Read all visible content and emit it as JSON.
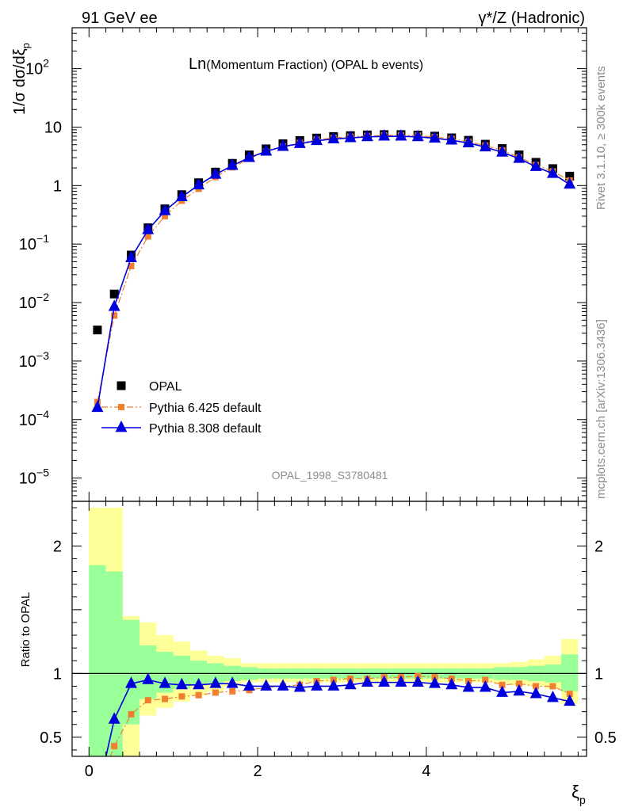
{
  "header": {
    "left": "91 GeV ee",
    "right": "γ*/Z (Hadronic)"
  },
  "side": {
    "rivet": "Rivet 3.1.10, ≥ 300k events",
    "mcplots": "mcplots.cern.ch [arXiv:1306.3436]"
  },
  "chart_data": {
    "type": "scatter",
    "title": "Ln(Momentum Fraction) (OPAL b events)",
    "title_main": "Ln",
    "title_rest": "(Momentum Fraction) (OPAL b events)",
    "watermark": "OPAL_1998_S3780481",
    "xlabel": "ξp",
    "xlabel_main": "ξ",
    "xlabel_sub": "p",
    "ylabel": "1/σ dσ/dξp",
    "ylabel_main": "1/σ dσ/dξ",
    "ylabel_sub": "p",
    "ratio_ylabel": "Ratio to OPAL",
    "xlim": [
      -0.2,
      5.9
    ],
    "ylim": [
      4e-06,
      500
    ],
    "yscale": "log",
    "ratio_ylim": [
      0.35,
      2.35
    ],
    "x_ticks": [
      "0",
      "2",
      "4"
    ],
    "ratio_ticks": [
      "0.5",
      "1",
      "2"
    ],
    "legend_position": "bottom-left",
    "x": [
      0.1,
      0.3,
      0.5,
      0.7,
      0.9,
      1.1,
      1.3,
      1.5,
      1.7,
      1.9,
      2.1,
      2.3,
      2.5,
      2.7,
      2.9,
      3.1,
      3.3,
      3.5,
      3.7,
      3.9,
      4.1,
      4.3,
      4.5,
      4.7,
      4.9,
      5.1,
      5.3,
      5.5,
      5.7
    ],
    "series": [
      {
        "name": "OPAL",
        "color": "#000000",
        "marker": "square",
        "values": [
          0.0034,
          0.014,
          0.065,
          0.19,
          0.4,
          0.7,
          1.12,
          1.7,
          2.4,
          3.35,
          4.25,
          5.2,
          5.9,
          6.5,
          6.9,
          7.15,
          7.35,
          7.45,
          7.45,
          7.3,
          7.0,
          6.55,
          5.95,
          5.1,
          4.3,
          3.35,
          2.5,
          1.95,
          1.45
        ],
        "band_yellow": [
          [
            0.0,
            2.3
          ],
          [
            0.0,
            2.3
          ],
          [
            0.35,
            1.45
          ],
          [
            0.67,
            1.4
          ],
          [
            0.73,
            1.3
          ],
          [
            0.78,
            1.25
          ],
          [
            0.83,
            1.18
          ],
          [
            0.86,
            1.14
          ],
          [
            0.9,
            1.12
          ],
          [
            0.93,
            1.08
          ],
          [
            0.93,
            1.08
          ],
          [
            0.93,
            1.08
          ],
          [
            0.93,
            1.08
          ],
          [
            0.93,
            1.08
          ],
          [
            0.93,
            1.08
          ],
          [
            0.93,
            1.08
          ],
          [
            0.93,
            1.08
          ],
          [
            0.93,
            1.08
          ],
          [
            0.93,
            1.08
          ],
          [
            0.93,
            1.08
          ],
          [
            0.93,
            1.08
          ],
          [
            0.93,
            1.08
          ],
          [
            0.93,
            1.08
          ],
          [
            0.93,
            1.08
          ],
          [
            0.92,
            1.08
          ],
          [
            0.91,
            1.09
          ],
          [
            0.9,
            1.11
          ],
          [
            0.88,
            1.14
          ],
          [
            0.76,
            1.27
          ]
        ],
        "band_green": [
          [
            0.0,
            1.85
          ],
          [
            0.0,
            1.8
          ],
          [
            0.6,
            1.42
          ],
          [
            0.8,
            1.22
          ],
          [
            0.85,
            1.17
          ],
          [
            0.88,
            1.14
          ],
          [
            0.91,
            1.1
          ],
          [
            0.92,
            1.08
          ],
          [
            0.94,
            1.06
          ],
          [
            0.95,
            1.05
          ],
          [
            0.96,
            1.04
          ],
          [
            0.96,
            1.04
          ],
          [
            0.96,
            1.04
          ],
          [
            0.96,
            1.04
          ],
          [
            0.96,
            1.04
          ],
          [
            0.96,
            1.04
          ],
          [
            0.96,
            1.04
          ],
          [
            0.96,
            1.04
          ],
          [
            0.96,
            1.04
          ],
          [
            0.96,
            1.04
          ],
          [
            0.96,
            1.04
          ],
          [
            0.96,
            1.04
          ],
          [
            0.96,
            1.04
          ],
          [
            0.96,
            1.04
          ],
          [
            0.95,
            1.05
          ],
          [
            0.95,
            1.05
          ],
          [
            0.94,
            1.06
          ],
          [
            0.93,
            1.07
          ],
          [
            0.86,
            1.15
          ]
        ]
      },
      {
        "name": "Pythia 6.425 default",
        "color": "#f08030",
        "marker": "square",
        "line": "dashdot",
        "values": [
          0.0002,
          0.006,
          0.042,
          0.135,
          0.3,
          0.55,
          0.88,
          1.4,
          2.05,
          2.9,
          3.8,
          4.65,
          5.35,
          6.1,
          6.55,
          6.85,
          7.05,
          7.2,
          7.25,
          7.15,
          6.75,
          6.3,
          5.6,
          4.85,
          4.0,
          3.05,
          2.25,
          1.75,
          1.22
        ],
        "ratio": [
          0.06,
          0.43,
          0.68,
          0.79,
          0.8,
          0.82,
          0.83,
          0.85,
          0.86,
          0.87,
          0.89,
          0.9,
          0.91,
          0.94,
          0.95,
          0.96,
          0.96,
          0.97,
          0.97,
          0.98,
          0.97,
          0.96,
          0.94,
          0.95,
          0.91,
          0.92,
          0.9,
          0.9,
          0.84
        ]
      },
      {
        "name": "Pythia 8.308 default",
        "color": "#0000dd",
        "marker": "triangle",
        "line": "solid",
        "values": [
          0.00016,
          0.0085,
          0.058,
          0.175,
          0.37,
          0.64,
          1.02,
          1.55,
          2.2,
          3.0,
          3.85,
          4.65,
          5.2,
          5.85,
          6.25,
          6.55,
          6.8,
          6.95,
          6.95,
          6.8,
          6.45,
          5.95,
          5.35,
          4.55,
          3.7,
          2.9,
          2.1,
          1.6,
          1.05
        ],
        "ratio": [
          0.05,
          0.64,
          0.92,
          0.95,
          0.92,
          0.91,
          0.91,
          0.92,
          0.92,
          0.9,
          0.9,
          0.9,
          0.89,
          0.9,
          0.9,
          0.91,
          0.93,
          0.93,
          0.93,
          0.93,
          0.92,
          0.91,
          0.89,
          0.89,
          0.85,
          0.86,
          0.84,
          0.81,
          0.78
        ]
      }
    ]
  }
}
